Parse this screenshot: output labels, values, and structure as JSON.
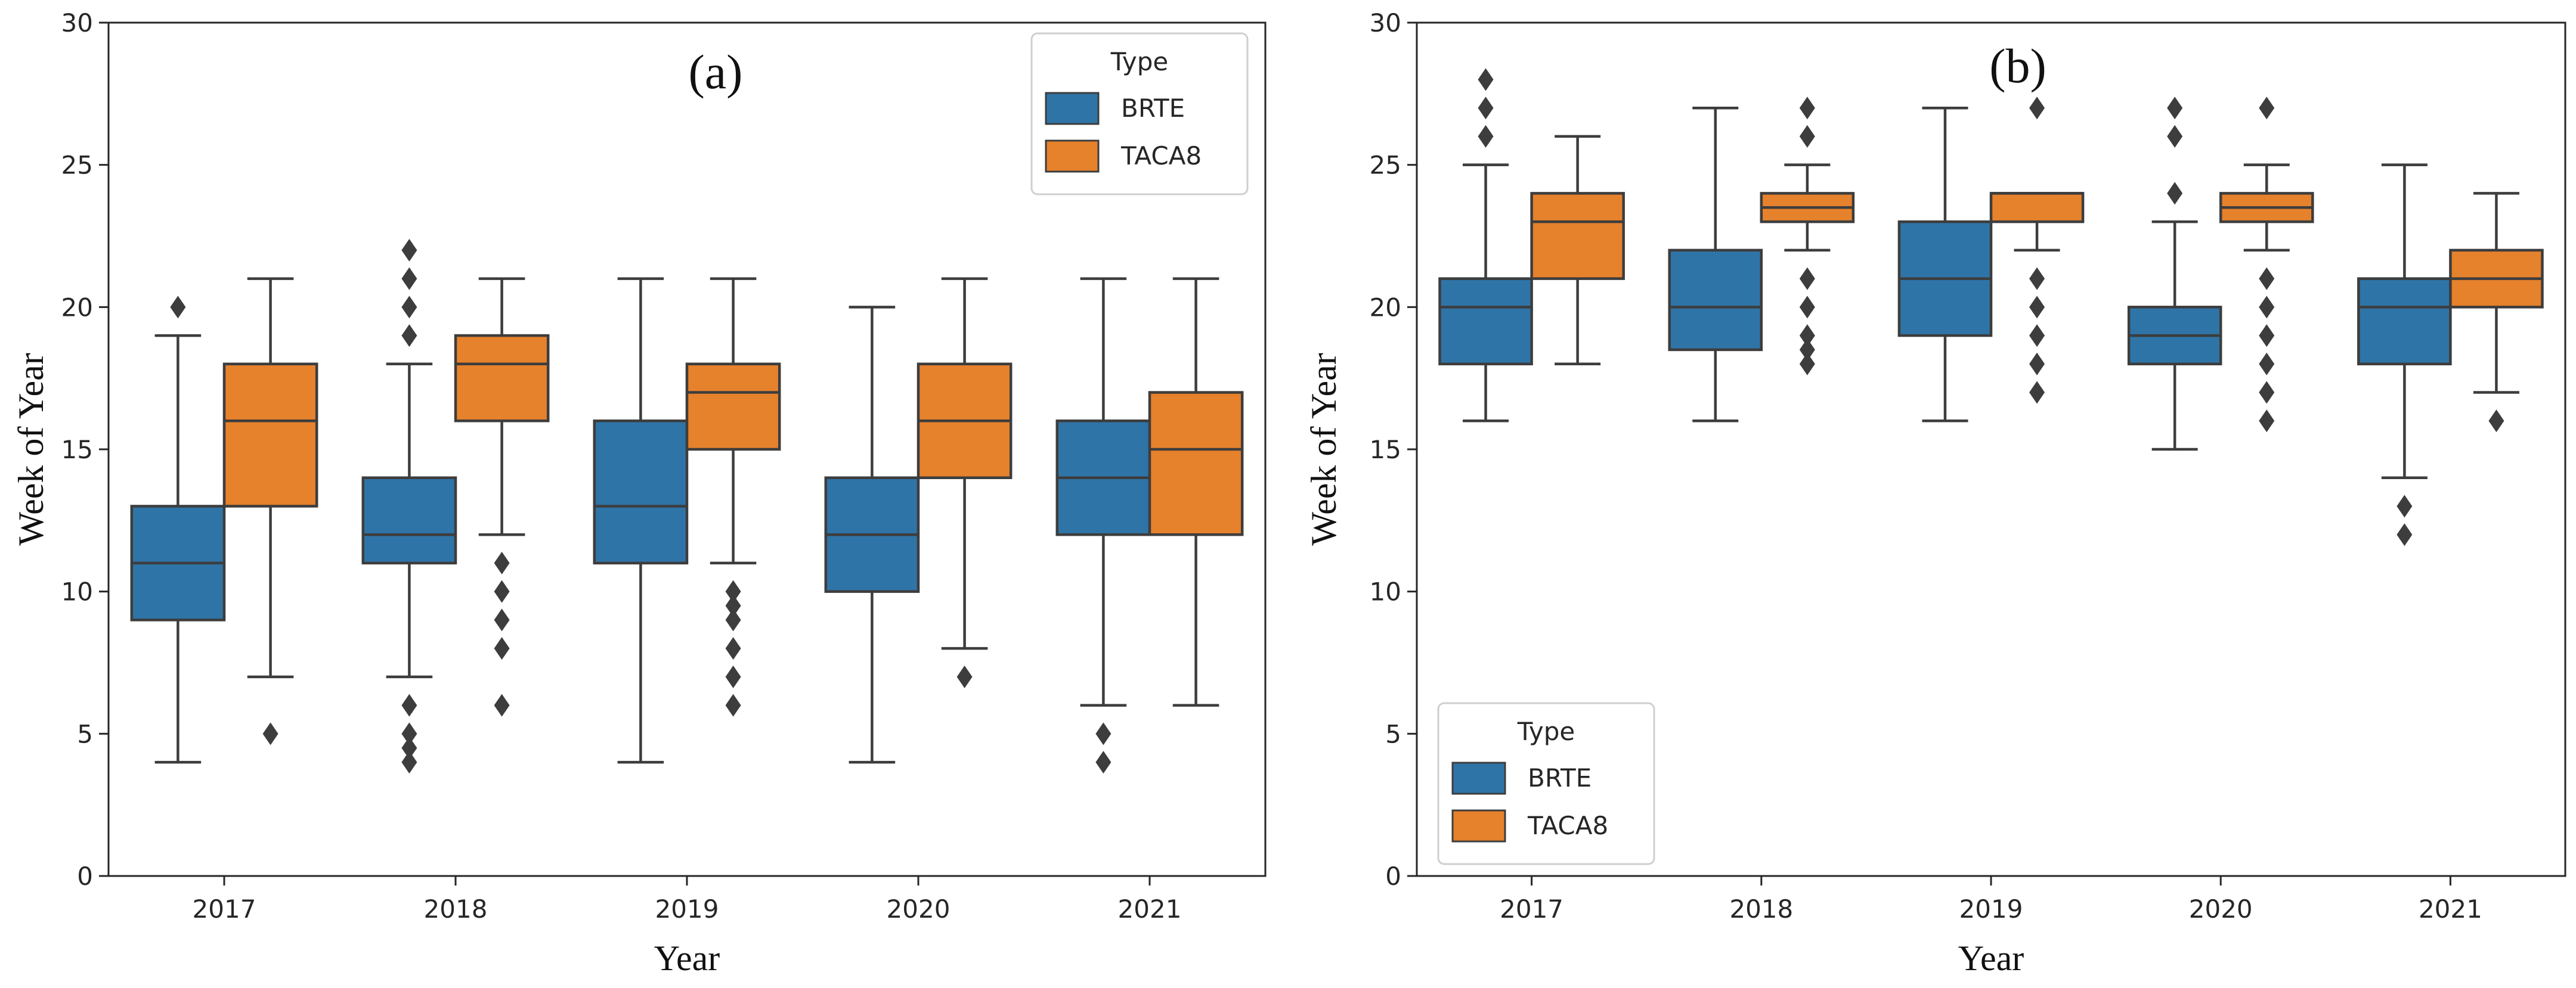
{
  "chart_data": [
    {
      "type": "box",
      "panel_label": "(a)",
      "title": "",
      "xlabel": "Year",
      "ylabel": "Week of Year",
      "ylim": [
        0,
        30
      ],
      "yticks": [
        "0",
        "5",
        "10",
        "15",
        "20",
        "25",
        "30"
      ],
      "categories": [
        "2017",
        "2018",
        "2019",
        "2020",
        "2021"
      ],
      "legend": {
        "title": "Type",
        "position": "top-right",
        "entries": [
          "BRTE",
          "TACA8"
        ]
      },
      "series": [
        {
          "name": "BRTE",
          "color": "#2f74a7",
          "boxes": [
            {
              "whislo": 4,
              "q1": 9,
              "med": 11,
              "q3": 13,
              "whishi": 19,
              "fliers": [
                20
              ]
            },
            {
              "whislo": 7,
              "q1": 11,
              "med": 12,
              "q3": 14,
              "whishi": 18,
              "fliers": [
                4,
                4.5,
                5,
                6,
                19,
                20,
                21,
                22
              ]
            },
            {
              "whislo": 4,
              "q1": 11,
              "med": 13,
              "q3": 16,
              "whishi": 21,
              "fliers": []
            },
            {
              "whislo": 4,
              "q1": 10,
              "med": 12,
              "q3": 14,
              "whishi": 20,
              "fliers": []
            },
            {
              "whislo": 6,
              "q1": 12,
              "med": 14,
              "q3": 16,
              "whishi": 21,
              "fliers": [
                4,
                5
              ]
            }
          ]
        },
        {
          "name": "TACA8",
          "color": "#e6812c",
          "boxes": [
            {
              "whislo": 7,
              "q1": 13,
              "med": 16,
              "q3": 18,
              "whishi": 21,
              "fliers": [
                5
              ]
            },
            {
              "whislo": 12,
              "q1": 16,
              "med": 18,
              "q3": 19,
              "whishi": 21,
              "fliers": [
                6,
                8,
                9,
                10,
                11
              ]
            },
            {
              "whislo": 11,
              "q1": 15,
              "med": 17,
              "q3": 18,
              "whishi": 21,
              "fliers": [
                6,
                7,
                8,
                9,
                9.5,
                10
              ]
            },
            {
              "whislo": 8,
              "q1": 14,
              "med": 16,
              "q3": 18,
              "whishi": 21,
              "fliers": [
                7
              ]
            },
            {
              "whislo": 6,
              "q1": 12,
              "med": 15,
              "q3": 17,
              "whishi": 21,
              "fliers": []
            }
          ]
        }
      ]
    },
    {
      "type": "box",
      "panel_label": "(b)",
      "title": "",
      "xlabel": "Year",
      "ylabel": "Week of Year",
      "ylim": [
        0,
        30
      ],
      "yticks": [
        "0",
        "5",
        "10",
        "15",
        "20",
        "25",
        "30"
      ],
      "categories": [
        "2017",
        "2018",
        "2019",
        "2020",
        "2021"
      ],
      "legend": {
        "title": "Type",
        "position": "bottom-left",
        "entries": [
          "BRTE",
          "TACA8"
        ]
      },
      "series": [
        {
          "name": "BRTE",
          "color": "#2f74a7",
          "boxes": [
            {
              "whislo": 16,
              "q1": 18,
              "med": 20,
              "q3": 21,
              "whishi": 25,
              "fliers": [
                26,
                27,
                28
              ]
            },
            {
              "whislo": 16,
              "q1": 18.5,
              "med": 20,
              "q3": 22,
              "whishi": 27,
              "fliers": []
            },
            {
              "whislo": 16,
              "q1": 19,
              "med": 21,
              "q3": 23,
              "whishi": 27,
              "fliers": []
            },
            {
              "whislo": 15,
              "q1": 18,
              "med": 19,
              "q3": 20,
              "whishi": 23,
              "fliers": [
                24,
                26,
                27
              ]
            },
            {
              "whislo": 14,
              "q1": 18,
              "med": 20,
              "q3": 21,
              "whishi": 25,
              "fliers": [
                12,
                13
              ]
            }
          ]
        },
        {
          "name": "TACA8",
          "color": "#e6812c",
          "boxes": [
            {
              "whislo": 18,
              "q1": 21,
              "med": 23,
              "q3": 24,
              "whishi": 26,
              "fliers": []
            },
            {
              "whislo": 22,
              "q1": 23,
              "med": 23.5,
              "q3": 24,
              "whishi": 25,
              "fliers": [
                18,
                18.5,
                19,
                20,
                21,
                26,
                27
              ]
            },
            {
              "whislo": 22,
              "q1": 23,
              "med": 24,
              "q3": 24,
              "whishi": 24,
              "fliers": [
                17,
                18,
                19,
                20,
                21,
                27
              ]
            },
            {
              "whislo": 22,
              "q1": 23,
              "med": 23.5,
              "q3": 24,
              "whishi": 25,
              "fliers": [
                16,
                17,
                18,
                19,
                20,
                21,
                27
              ]
            },
            {
              "whislo": 17,
              "q1": 20,
              "med": 21,
              "q3": 22,
              "whishi": 24,
              "fliers": [
                16
              ]
            }
          ]
        }
      ]
    }
  ]
}
